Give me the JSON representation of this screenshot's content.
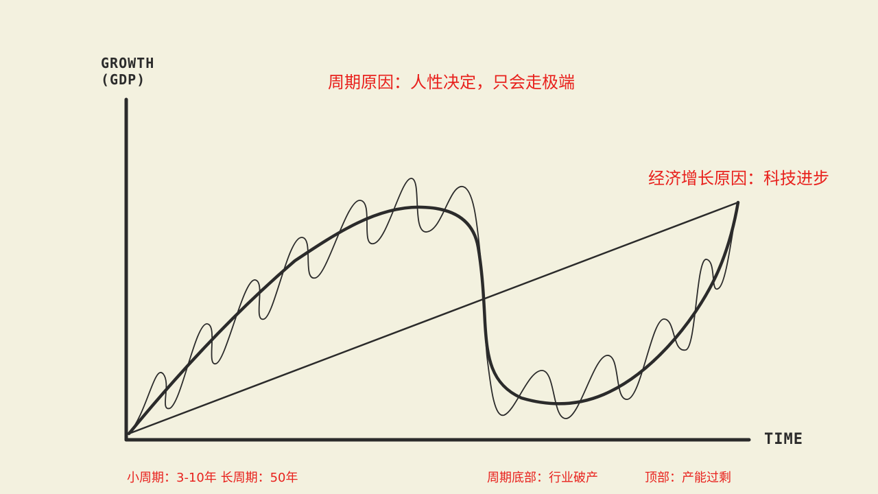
{
  "diagram": {
    "y_axis_label_line1": "GROWTH",
    "y_axis_label_line2": "(GDP)",
    "x_axis_label": "TIME",
    "ink_color": "#2b2b2b",
    "note_color": "#e8211d",
    "background_color": "#f3f1df"
  },
  "annotations": {
    "cycle_cause": "周期原因：人性决定，只会走极端",
    "growth_cause": "经济增长原因：科技进步",
    "cycle_lengths": "小周期：3-10年 长周期：50年",
    "cycle_bottom": "周期底部：行业破产",
    "cycle_top": "顶部：产能过剩"
  }
}
